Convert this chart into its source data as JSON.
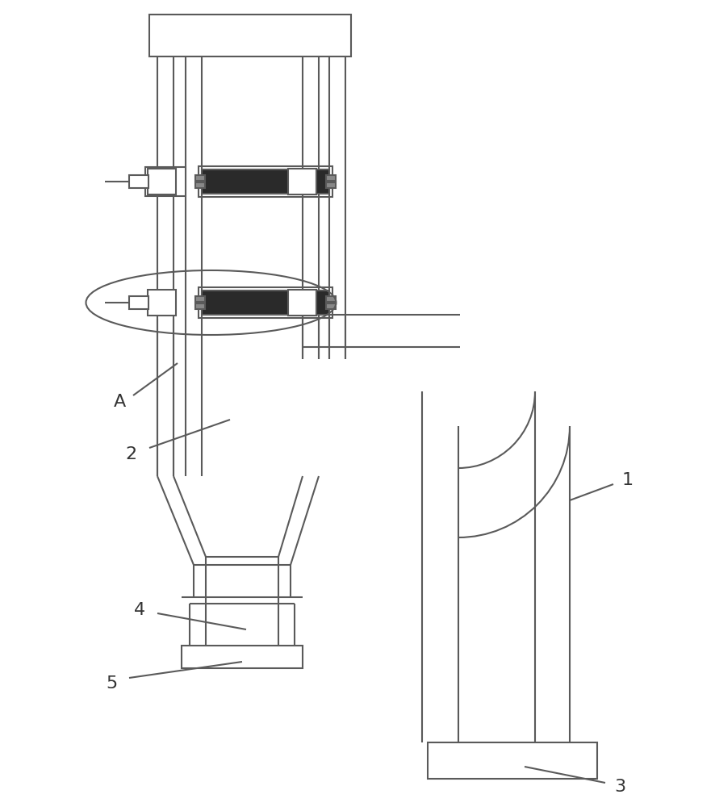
{
  "bg": "#ffffff",
  "lc": "#5a5a5a",
  "lw": 1.5,
  "lw2": 1.8,
  "filter_dark": "#2a2a2a",
  "filter_light": "#cccccc",
  "fig_w": 8.86,
  "fig_h": 10.0,
  "dpi": 100
}
